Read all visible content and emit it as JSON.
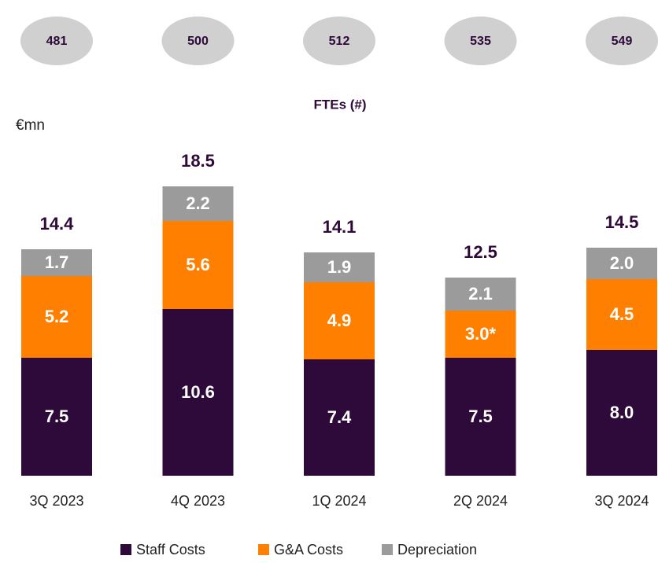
{
  "chart_data": {
    "type": "stacked_bar",
    "unit": "€mn",
    "fte": {
      "label": "FTEs (#)",
      "values": [
        481,
        500,
        512,
        535,
        549
      ]
    },
    "categories": [
      "3Q 2023",
      "4Q 2023",
      "1Q 2024",
      "2Q 2024",
      "3Q 2024"
    ],
    "series": [
      {
        "name": "Staff Costs",
        "color": "#2e0a3a",
        "values": [
          7.5,
          10.6,
          7.4,
          7.5,
          8.0
        ],
        "value_labels": [
          "7.5",
          "10.6",
          "7.4",
          "7.5",
          "8.0"
        ]
      },
      {
        "name": "G&A Costs",
        "color": "#ff8000",
        "values": [
          5.2,
          5.6,
          4.9,
          3.0,
          4.5
        ],
        "value_labels": [
          "5.2",
          "5.6",
          "4.9",
          "3.0*",
          "4.5"
        ]
      },
      {
        "name": "Depreciation",
        "color": "#9b9b9b",
        "values": [
          1.7,
          2.2,
          1.9,
          2.1,
          2.0
        ],
        "value_labels": [
          "1.7",
          "2.2",
          "1.9",
          "2.1",
          "2.0"
        ]
      }
    ],
    "totals": [
      14.4,
      18.5,
      14.1,
      12.5,
      14.5
    ]
  }
}
